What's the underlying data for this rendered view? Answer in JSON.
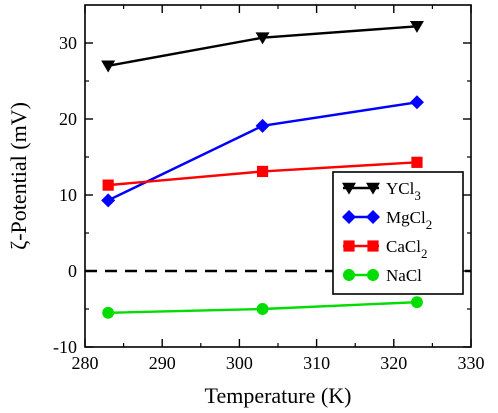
{
  "chart_data": {
    "type": "line",
    "xlabel": "Temperature (K)",
    "ylabel": "ζ-Potential (mV)",
    "xlim": [
      280,
      330
    ],
    "ylim": [
      -10,
      35
    ],
    "xticks": [
      280,
      290,
      300,
      310,
      320,
      330
    ],
    "yticks": [
      -10,
      0,
      10,
      20,
      30
    ],
    "xtick_labels": [
      "280",
      "290",
      "300",
      "310",
      "320",
      "330"
    ],
    "ytick_labels": [
      "-10",
      "0",
      "10",
      "20",
      "30"
    ],
    "grid": false,
    "legend_position": "right",
    "reference_line": {
      "y": 0,
      "style": "dashed",
      "color": "#000000"
    },
    "series": [
      {
        "name": "YCl3",
        "label_base": "YCl",
        "label_sub": "3",
        "color": "#000000",
        "marker": "triangle-down",
        "x": [
          283,
          303,
          323
        ],
        "y": [
          27.0,
          30.7,
          32.2
        ]
      },
      {
        "name": "MgCl2",
        "label_base": "MgCl",
        "label_sub": "2",
        "color": "#0000ff",
        "marker": "diamond",
        "x": [
          283,
          303,
          323
        ],
        "y": [
          9.3,
          19.1,
          22.2
        ]
      },
      {
        "name": "CaCl2",
        "label_base": "CaCl",
        "label_sub": "2",
        "color": "#ff0000",
        "marker": "square",
        "x": [
          283,
          303,
          323
        ],
        "y": [
          11.3,
          13.1,
          14.3
        ]
      },
      {
        "name": "NaCl",
        "label_base": "NaCl",
        "label_sub": "",
        "color": "#00dd00",
        "marker": "circle",
        "x": [
          283,
          303,
          323
        ],
        "y": [
          -5.5,
          -5.0,
          -4.1
        ]
      }
    ]
  }
}
